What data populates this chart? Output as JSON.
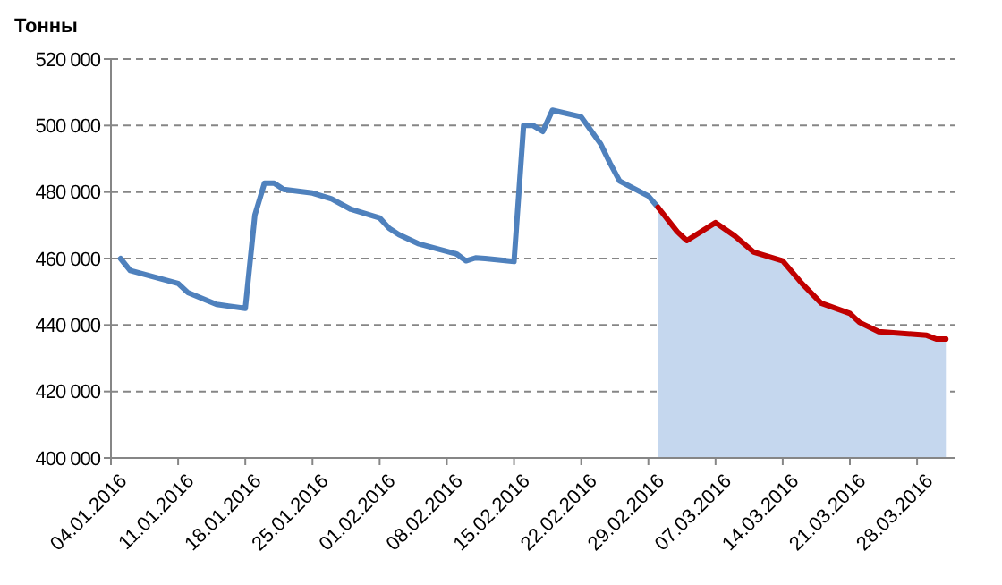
{
  "chart_data": {
    "type": "line",
    "ylabel": "Тонны",
    "grid": "y",
    "xlim": [
      "2016-01-04",
      "2016-04-01"
    ],
    "xticks": [
      {
        "value": "2016-01-04",
        "label": "04.01.2016"
      },
      {
        "value": "2016-01-11",
        "label": "11.01.2016"
      },
      {
        "value": "2016-01-18",
        "label": "18.01.2016"
      },
      {
        "value": "2016-01-25",
        "label": "25.01.2016"
      },
      {
        "value": "2016-02-01",
        "label": "01.02.2016"
      },
      {
        "value": "2016-02-08",
        "label": "08.02.2016"
      },
      {
        "value": "2016-02-15",
        "label": "15.02.2016"
      },
      {
        "value": "2016-02-22",
        "label": "22.02.2016"
      },
      {
        "value": "2016-02-29",
        "label": "29.02.2016"
      },
      {
        "value": "2016-03-07",
        "label": "07.03.2016"
      },
      {
        "value": "2016-03-14",
        "label": "14.03.2016"
      },
      {
        "value": "2016-03-21",
        "label": "21.03.2016"
      },
      {
        "value": "2016-03-28",
        "label": "28.03.2016"
      }
    ],
    "ylim": [
      400000,
      520000
    ],
    "yticks": [
      {
        "value": 400000,
        "label": "400 000"
      },
      {
        "value": 420000,
        "label": "420 000"
      },
      {
        "value": 440000,
        "label": "440 000"
      },
      {
        "value": 460000,
        "label": "460 000"
      },
      {
        "value": 480000,
        "label": "480 000"
      },
      {
        "value": 500000,
        "label": "500 000"
      },
      {
        "value": 520000,
        "label": "520 000"
      }
    ],
    "series": [
      {
        "type": "area",
        "color": "#c5d7ee",
        "x": [
          "2016-03-01",
          "2016-03-03",
          "2016-03-04",
          "2016-03-07",
          "2016-03-09",
          "2016-03-11",
          "2016-03-14",
          "2016-03-16",
          "2016-03-18",
          "2016-03-21",
          "2016-03-22",
          "2016-03-24",
          "2016-03-29",
          "2016-03-30",
          "2016-03-31"
        ],
        "values": [
          475400,
          468100,
          465400,
          470800,
          466800,
          461900,
          459300,
          452500,
          446600,
          443500,
          440800,
          438000,
          436900,
          435800,
          435800
        ]
      },
      {
        "color": "#4f81bd",
        "x": [
          "2016-01-05",
          "2016-01-06",
          "2016-01-11",
          "2016-01-12",
          "2016-01-15",
          "2016-01-18",
          "2016-01-19",
          "2016-01-20",
          "2016-01-21",
          "2016-01-22",
          "2016-01-25",
          "2016-01-27",
          "2016-01-29",
          "2016-02-01",
          "2016-02-02",
          "2016-02-03",
          "2016-02-05",
          "2016-02-09",
          "2016-02-10",
          "2016-02-11",
          "2016-02-12",
          "2016-02-15",
          "2016-02-16",
          "2016-02-17",
          "2016-02-18",
          "2016-02-19",
          "2016-02-22",
          "2016-02-24",
          "2016-02-25",
          "2016-02-26",
          "2016-02-29",
          "2016-03-01"
        ],
        "values": [
          460000,
          456400,
          452500,
          449800,
          446200,
          445000,
          473100,
          482700,
          482700,
          480800,
          479700,
          477900,
          474800,
          472200,
          469100,
          467200,
          464500,
          461400,
          459300,
          460200,
          460000,
          459100,
          500000,
          500000,
          498200,
          504600,
          502600,
          494600,
          488700,
          483300,
          478800,
          475400
        ]
      },
      {
        "color": "#c00000",
        "x": [
          "2016-03-01",
          "2016-03-03",
          "2016-03-04",
          "2016-03-07",
          "2016-03-09",
          "2016-03-11",
          "2016-03-14",
          "2016-03-16",
          "2016-03-18",
          "2016-03-21",
          "2016-03-22",
          "2016-03-24",
          "2016-03-29",
          "2016-03-30",
          "2016-03-31"
        ],
        "values": [
          475400,
          468100,
          465400,
          470800,
          466800,
          461900,
          459300,
          452500,
          446600,
          443500,
          440800,
          438000,
          436900,
          435800,
          435800
        ]
      }
    ]
  }
}
